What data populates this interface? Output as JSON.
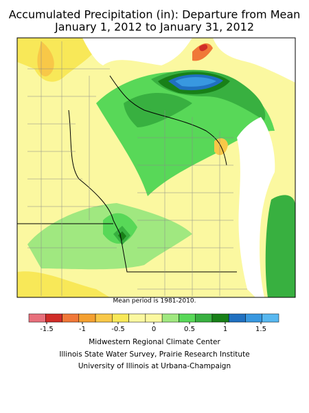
{
  "header": {
    "title": "Accumulated Precipitation (in): Departure from Mean",
    "subtitle": "January 1, 2012 to January 31, 2012"
  },
  "note": "Mean period is 1981-2010.",
  "colorbar": {
    "lim": [
      -1.75,
      1.75
    ],
    "ticks": [
      -1.5,
      -1,
      -0.5,
      0,
      0.5,
      1,
      1.5
    ],
    "colors": [
      "#e8707c",
      "#d02c28",
      "#f07838",
      "#f4a030",
      "#f8c848",
      "#f8e858",
      "#fbf8a0",
      "#fbf8a0",
      "#a0e880",
      "#58d858",
      "#38b040",
      "#188018",
      "#2070c0",
      "#3898e0",
      "#58b8f0"
    ]
  },
  "credits": [
    "Midwestern Regional Climate Center",
    "Illinois State Water Survey, Prairie Research Institute",
    "University of Illinois at Urbana-Champaign"
  ]
}
